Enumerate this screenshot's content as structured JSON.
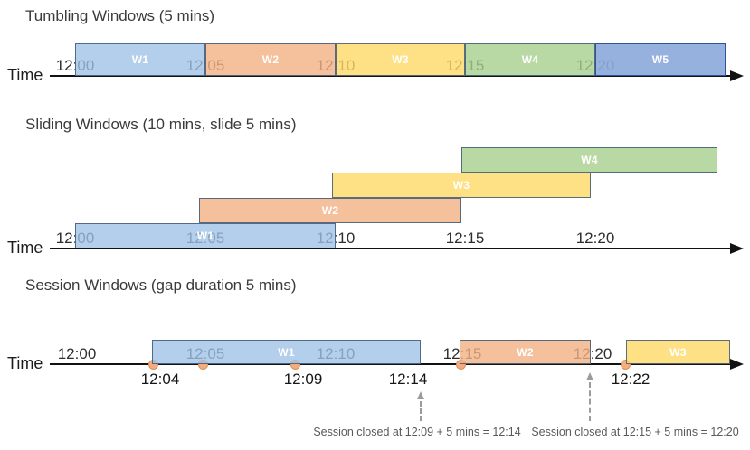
{
  "colors": {
    "blue": "#9DC2E6",
    "orange": "#F3B183",
    "yellow": "#FFD966",
    "green": "#A8D08D",
    "dark_blue": "#8EAADB",
    "dark_blue_border": "#2F5597",
    "box_border": "#3E5876",
    "event_dot": "#F2AC80",
    "axis": "#121212",
    "annotation_text": "#595959"
  },
  "sections": [
    {
      "id": "tumbling",
      "title": "Tumbling Windows (5 mins)",
      "axis_label": "Time",
      "ticks": [
        "12:00",
        "12:05",
        "12:10",
        "12:15",
        "12:20"
      ],
      "windows": [
        {
          "label": "W1",
          "color": "blue",
          "start": "12:00",
          "end": "12:05"
        },
        {
          "label": "W2",
          "color": "orange",
          "start": "12:05",
          "end": "12:10"
        },
        {
          "label": "W3",
          "color": "yellow",
          "start": "12:10",
          "end": "12:15"
        },
        {
          "label": "W4",
          "color": "green",
          "start": "12:15",
          "end": "12:20"
        },
        {
          "label": "W5",
          "color": "dark_blue",
          "start": "12:20"
        }
      ]
    },
    {
      "id": "sliding",
      "title": "Sliding Windows (10 mins, slide 5 mins)",
      "axis_label": "Time",
      "ticks": [
        "12:00",
        "12:05",
        "12:10",
        "12:15",
        "12:20"
      ],
      "windows": [
        {
          "label": "W1",
          "color": "blue",
          "start": "12:00",
          "end": "12:10"
        },
        {
          "label": "W2",
          "color": "orange",
          "start": "12:05",
          "end": "12:15"
        },
        {
          "label": "W3",
          "color": "yellow",
          "start": "12:10",
          "end": "12:20"
        },
        {
          "label": "W4",
          "color": "green",
          "start": "12:15"
        }
      ]
    },
    {
      "id": "session",
      "title": "Session Windows (gap duration 5 mins)",
      "axis_label": "Time",
      "ticks": [
        "12:00",
        "12:05",
        "12:10",
        "12:15",
        "12:20"
      ],
      "windows": [
        {
          "label": "W1",
          "color": "blue",
          "start": "12:04",
          "end": "12:14"
        },
        {
          "label": "W2",
          "color": "orange",
          "start": "12:15",
          "end": "12:20"
        },
        {
          "label": "W3",
          "color": "yellow",
          "start": "12:22"
        }
      ],
      "event_dots": [
        "12:04",
        "12:05",
        "12:09",
        "12:15",
        "12:22"
      ],
      "event_labels": [
        "12:04",
        "12:09",
        "12:14",
        "12:22"
      ],
      "annotations": [
        "Session closed at 12:09 + 5 mins = 12:14",
        "Session closed at 12:15 + 5 mins = 12:20"
      ]
    }
  ]
}
